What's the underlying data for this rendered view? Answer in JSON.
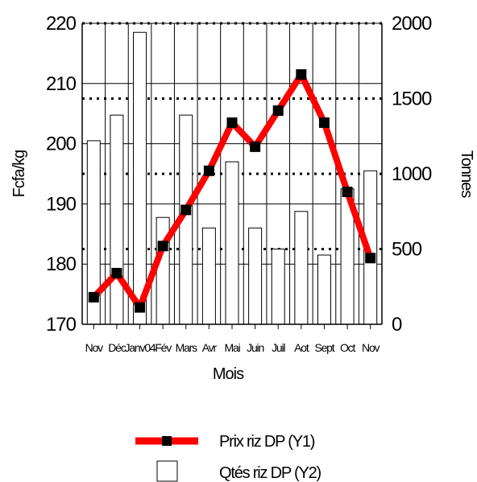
{
  "chart_data": {
    "type": "bar+line",
    "categories": [
      "Nov",
      "Déc",
      "Janv04",
      "Fév",
      "Mars",
      "Avr",
      "Mai",
      "Juin",
      "Juil",
      "Aot",
      "Sept",
      "Oct",
      "Nov"
    ],
    "xlabel": "Mois",
    "y1label": "Fcfa/kg",
    "y2label": "Tonnes",
    "y1lim": [
      170,
      220
    ],
    "y1ticks": [
      170,
      180,
      190,
      200,
      210,
      220
    ],
    "y2lim": [
      0,
      2000
    ],
    "y2ticks": [
      0,
      500,
      1000,
      1500,
      2000
    ],
    "series": [
      {
        "name": "Prix riz DP (Y1)",
        "type": "line",
        "axis": "y1",
        "color": "#ff0000",
        "marker": "square",
        "marker_color": "#000000",
        "values": [
          174.5,
          178.5,
          172.8,
          183,
          189,
          195.5,
          203.5,
          199.5,
          205.5,
          211.5,
          203.5,
          192,
          181
        ]
      },
      {
        "name": "Qtés riz DP (Y2)",
        "type": "bar",
        "axis": "y2",
        "color": "#ffffff",
        "edge_color": "#000000",
        "values": [
          1220,
          1390,
          1940,
          710,
          1390,
          640,
          1080,
          640,
          500,
          750,
          460,
          900,
          1020
        ]
      }
    ],
    "grid": {
      "y1_solid": true,
      "y2_dotted": true,
      "x_solid": true
    },
    "legend": "bottom"
  }
}
